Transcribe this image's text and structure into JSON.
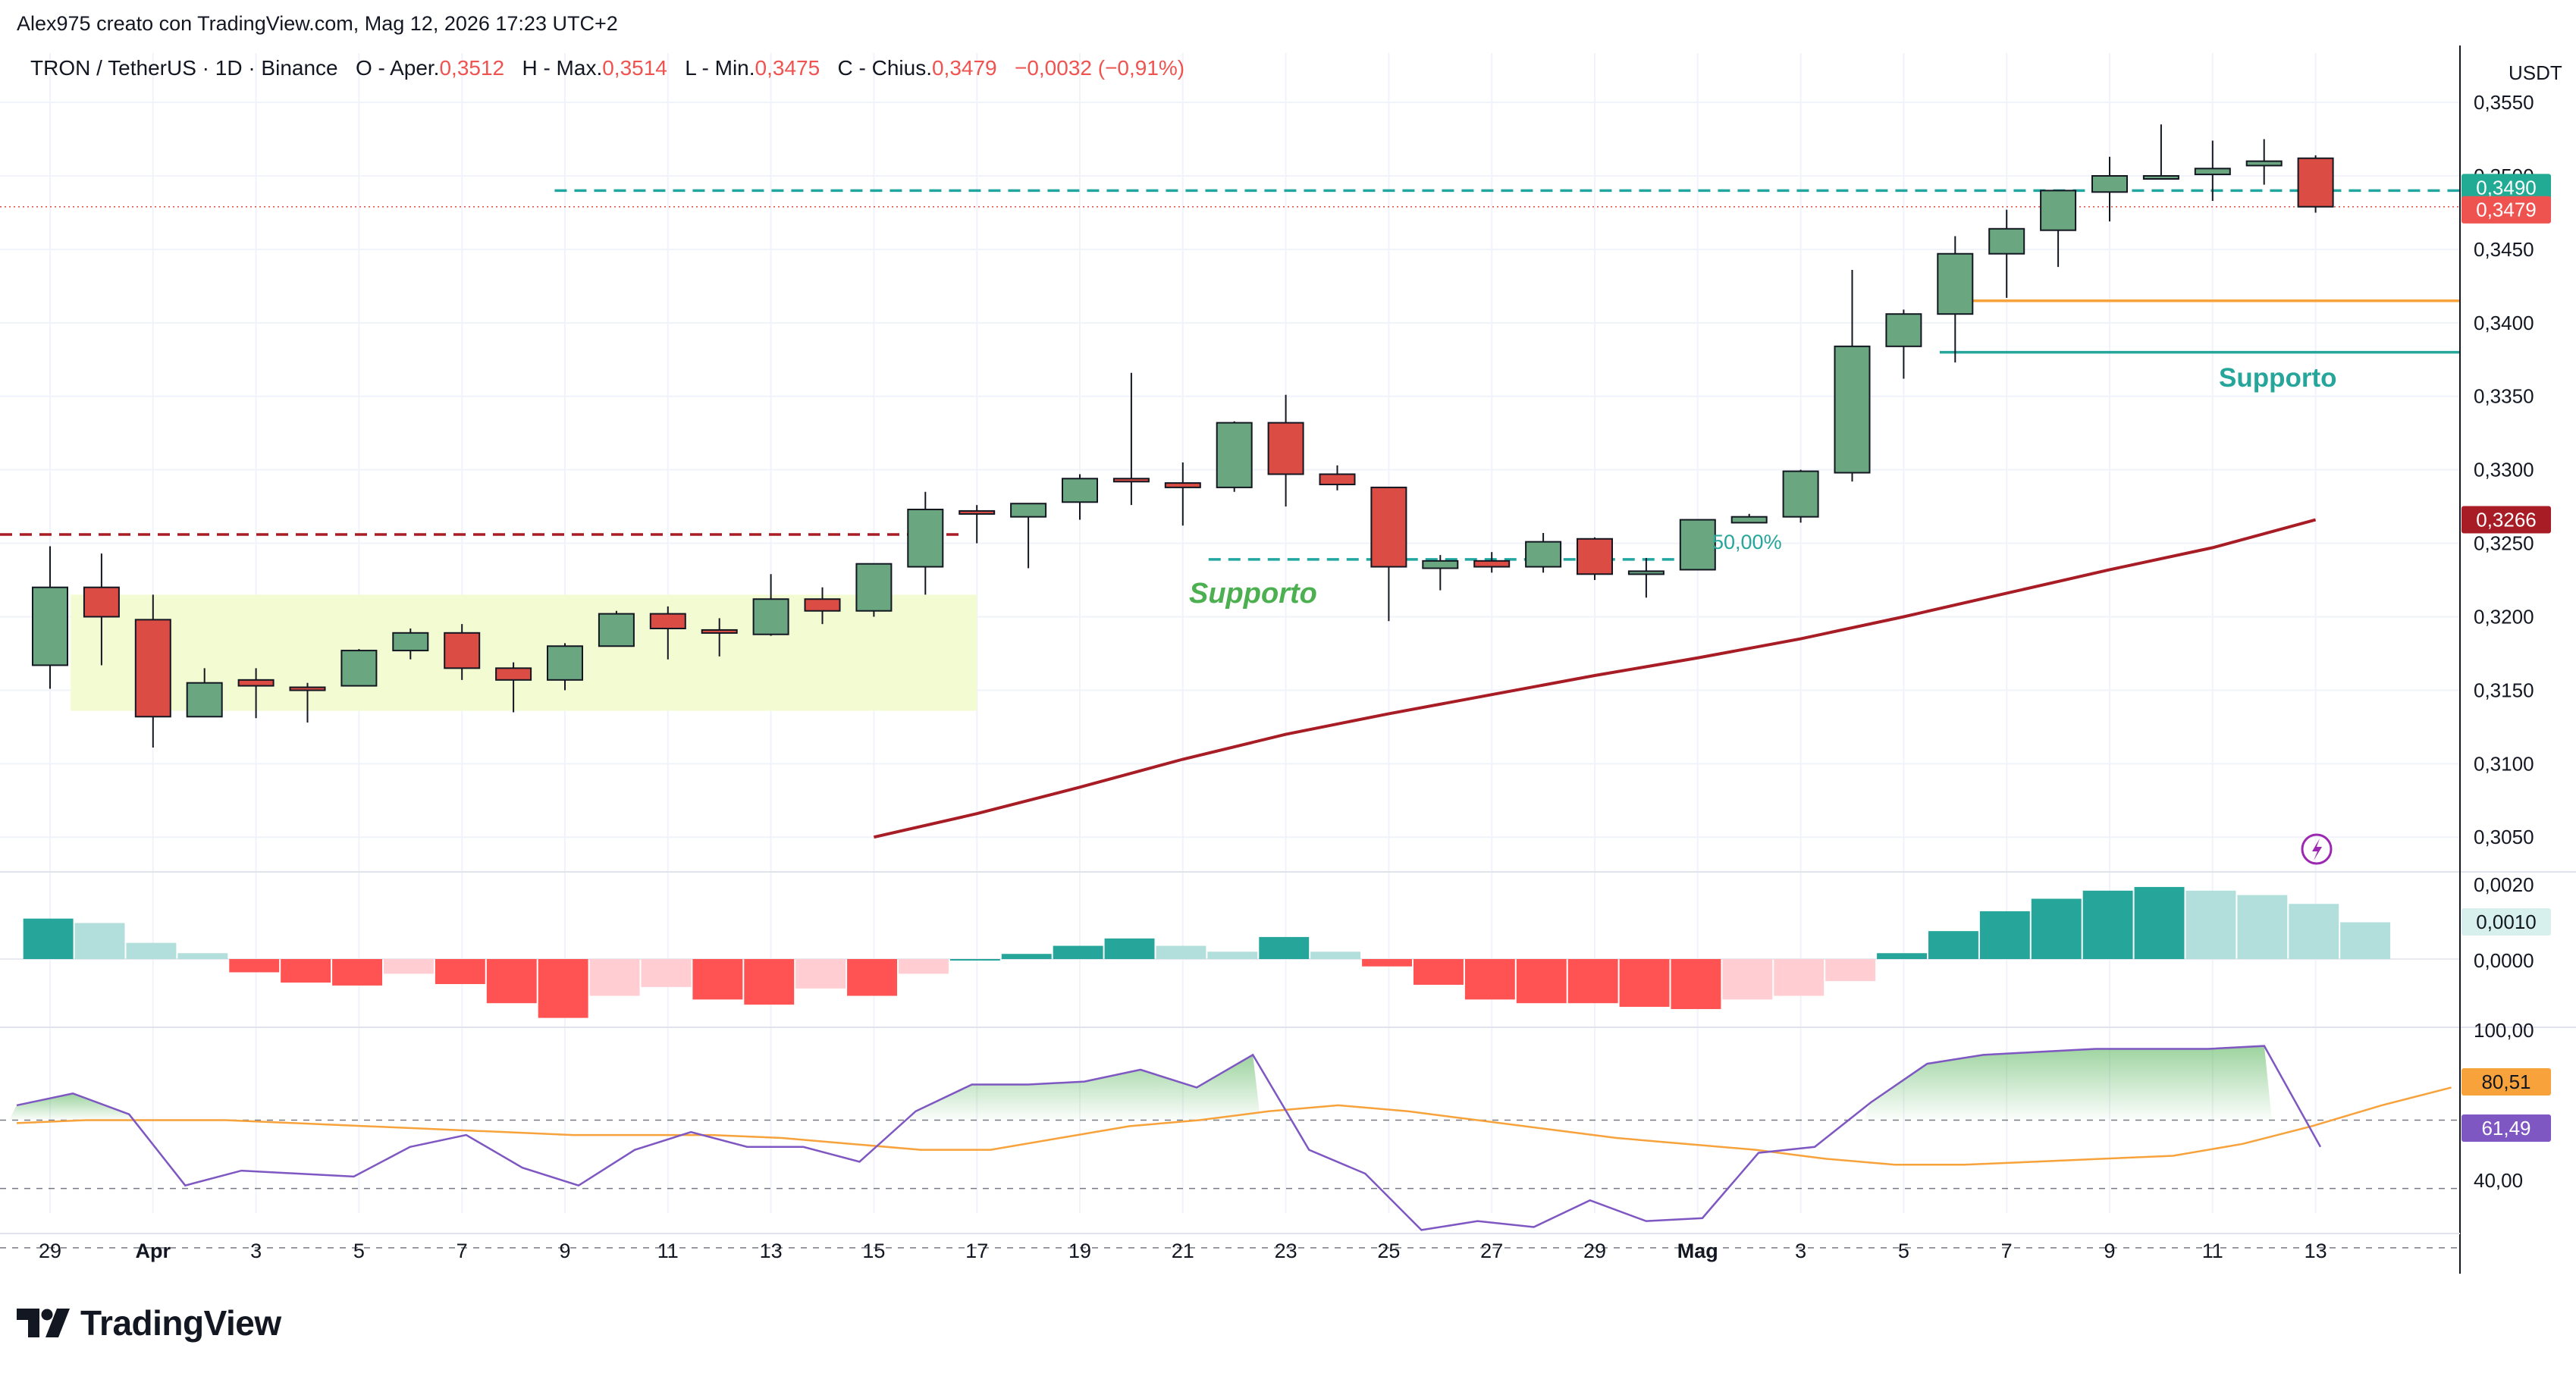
{
  "header": {
    "credit": "Alex975 creato con TradingView.com, Mag 12, 2026 17:23 UTC+2"
  },
  "legend": {
    "symbol": "TRON / TetherUS · 1D · Binance",
    "open_label": "O - Aper.",
    "open": "0,3512",
    "high_label": "H - Max.",
    "high": "0,3514",
    "low_label": "L - Min.",
    "low": "0,3475",
    "close_label": "C - Chius.",
    "close": "0,3479",
    "change": "−0,0032 (−0,91%)"
  },
  "axis": {
    "currency": "USDT",
    "price_ticks": [
      "0,3550",
      "0,3500",
      "0,3450",
      "0,3400",
      "0,3350",
      "0,3300",
      "0,3250",
      "0,3200",
      "0,3150",
      "0,3100",
      "0,3050"
    ],
    "macd_ticks": [
      "0,0020",
      "0,0010",
      "0,0000"
    ],
    "rsi_ticks": [
      "100,00",
      "40,00"
    ],
    "time_ticks": [
      "29",
      "Apr",
      "3",
      "5",
      "7",
      "9",
      "11",
      "13",
      "15",
      "17",
      "19",
      "21",
      "23",
      "25",
      "27",
      "29",
      "Mag",
      "3",
      "5",
      "7",
      "9",
      "11",
      "13"
    ]
  },
  "labels": {
    "last_price": "0,3479",
    "level_price": "0,3490",
    "ma_price": "0,3266",
    "macd_value": "0,0010",
    "rsi_ma_value": "80,51",
    "rsi_value": "61,49",
    "support_right": "Supporto",
    "support_left": "Supporto",
    "fib": "50,00%"
  },
  "colors": {
    "up": "#6aa680",
    "down": "#db4d44",
    "ma": "#a81d25",
    "level": "#22a6a0",
    "support": "#26a69a",
    "orange": "#f7a23b",
    "zone": "#f3fbd2",
    "hist_up_strong": "#26a69a",
    "hist_up_weak": "#b2dfdb",
    "hist_down_strong": "#ff5252",
    "hist_down_weak": "#ffcdd2",
    "rsi": "#7e57c2",
    "rsi_ma": "#f7a23b"
  },
  "brand": {
    "name": "TradingView"
  },
  "chart_data": {
    "type": "candlestick",
    "x_start": "2026-03-29",
    "candles": [
      {
        "o": 0.3167,
        "h": 0.3248,
        "l": 0.3151,
        "c": 0.322
      },
      {
        "o": 0.322,
        "h": 0.3243,
        "l": 0.3167,
        "c": 0.32
      },
      {
        "o": 0.3198,
        "h": 0.3215,
        "l": 0.3111,
        "c": 0.3132
      },
      {
        "o": 0.3132,
        "h": 0.3165,
        "l": 0.3132,
        "c": 0.3155
      },
      {
        "o": 0.3157,
        "h": 0.3165,
        "l": 0.3131,
        "c": 0.3153
      },
      {
        "o": 0.3152,
        "h": 0.3155,
        "l": 0.3128,
        "c": 0.3151
      },
      {
        "o": 0.3153,
        "h": 0.3178,
        "l": 0.3153,
        "c": 0.3177
      },
      {
        "o": 0.3177,
        "h": 0.3192,
        "l": 0.3171,
        "c": 0.3189
      },
      {
        "o": 0.3189,
        "h": 0.3195,
        "l": 0.3157,
        "c": 0.3165
      },
      {
        "o": 0.3165,
        "h": 0.3169,
        "l": 0.3135,
        "c": 0.3157
      },
      {
        "o": 0.3157,
        "h": 0.3182,
        "l": 0.315,
        "c": 0.318
      },
      {
        "o": 0.318,
        "h": 0.3204,
        "l": 0.318,
        "c": 0.3202
      },
      {
        "o": 0.3202,
        "h": 0.3207,
        "l": 0.3171,
        "c": 0.3192
      },
      {
        "o": 0.3191,
        "h": 0.3199,
        "l": 0.3173,
        "c": 0.3189
      },
      {
        "o": 0.3188,
        "h": 0.3229,
        "l": 0.3187,
        "c": 0.3212
      },
      {
        "o": 0.3212,
        "h": 0.322,
        "l": 0.3195,
        "c": 0.3204
      },
      {
        "o": 0.3204,
        "h": 0.3236,
        "l": 0.32,
        "c": 0.3236
      },
      {
        "o": 0.3234,
        "h": 0.3285,
        "l": 0.3215,
        "c": 0.3273
      },
      {
        "o": 0.3272,
        "h": 0.3276,
        "l": 0.325,
        "c": 0.3271
      },
      {
        "o": 0.3268,
        "h": 0.3276,
        "l": 0.3233,
        "c": 0.3277
      },
      {
        "o": 0.3278,
        "h": 0.3297,
        "l": 0.3266,
        "c": 0.3294
      },
      {
        "o": 0.3294,
        "h": 0.3366,
        "l": 0.3276,
        "c": 0.3292
      },
      {
        "o": 0.3291,
        "h": 0.3305,
        "l": 0.3262,
        "c": 0.3288
      },
      {
        "o": 0.3288,
        "h": 0.3333,
        "l": 0.3285,
        "c": 0.3332
      },
      {
        "o": 0.3332,
        "h": 0.3351,
        "l": 0.3275,
        "c": 0.3297
      },
      {
        "o": 0.3297,
        "h": 0.3303,
        "l": 0.3286,
        "c": 0.329
      },
      {
        "o": 0.3288,
        "h": 0.3288,
        "l": 0.3197,
        "c": 0.3234
      },
      {
        "o": 0.3233,
        "h": 0.3242,
        "l": 0.3218,
        "c": 0.3238
      },
      {
        "o": 0.3238,
        "h": 0.3244,
        "l": 0.323,
        "c": 0.3234
      },
      {
        "o": 0.3234,
        "h": 0.3257,
        "l": 0.323,
        "c": 0.3251
      },
      {
        "o": 0.3253,
        "h": 0.3254,
        "l": 0.3225,
        "c": 0.3229
      },
      {
        "o": 0.3229,
        "h": 0.324,
        "l": 0.3213,
        "c": 0.3231
      },
      {
        "o": 0.3232,
        "h": 0.3266,
        "l": 0.3232,
        "c": 0.3266
      },
      {
        "o": 0.3264,
        "h": 0.327,
        "l": 0.3264,
        "c": 0.3268
      },
      {
        "o": 0.3268,
        "h": 0.33,
        "l": 0.3264,
        "c": 0.3299
      },
      {
        "o": 0.3298,
        "h": 0.3436,
        "l": 0.3292,
        "c": 0.3384
      },
      {
        "o": 0.3384,
        "h": 0.3409,
        "l": 0.3362,
        "c": 0.3406
      },
      {
        "o": 0.3406,
        "h": 0.3459,
        "l": 0.3373,
        "c": 0.3447
      },
      {
        "o": 0.3447,
        "h": 0.3477,
        "l": 0.3417,
        "c": 0.3464
      },
      {
        "o": 0.3463,
        "h": 0.3487,
        "l": 0.3438,
        "c": 0.349
      },
      {
        "o": 0.3489,
        "h": 0.3513,
        "l": 0.3469,
        "c": 0.35
      },
      {
        "o": 0.35,
        "h": 0.3535,
        "l": 0.35,
        "c": 0.35
      },
      {
        "o": 0.3501,
        "h": 0.3524,
        "l": 0.3483,
        "c": 0.3505
      },
      {
        "o": 0.3507,
        "h": 0.3525,
        "l": 0.3494,
        "c": 0.351
      },
      {
        "o": 0.3512,
        "h": 0.3514,
        "l": 0.3475,
        "c": 0.3479
      }
    ],
    "ma": [
      {
        "i": 16,
        "v": 0.305
      },
      {
        "i": 18,
        "v": 0.3066
      },
      {
        "i": 20,
        "v": 0.3084
      },
      {
        "i": 22,
        "v": 0.3103
      },
      {
        "i": 24,
        "v": 0.312
      },
      {
        "i": 26,
        "v": 0.3134
      },
      {
        "i": 28,
        "v": 0.3147
      },
      {
        "i": 30,
        "v": 0.316
      },
      {
        "i": 32,
        "v": 0.3172
      },
      {
        "i": 34,
        "v": 0.3185
      },
      {
        "i": 36,
        "v": 0.32
      },
      {
        "i": 38,
        "v": 0.3216
      },
      {
        "i": 40,
        "v": 0.3232
      },
      {
        "i": 42,
        "v": 0.3247
      },
      {
        "i": 44,
        "v": 0.3266
      }
    ],
    "macd_hist": [
      0.00055,
      0.00049,
      0.00022,
      8e-05,
      -0.00018,
      -0.00032,
      -0.00036,
      -0.0002,
      -0.00034,
      -0.0006,
      -0.0008,
      -0.0005,
      -0.00038,
      -0.00055,
      -0.00062,
      -0.0004,
      -0.0005,
      -0.0002,
      0.0,
      7e-05,
      0.00018,
      0.00028,
      0.00018,
      0.0001,
      0.0003,
      0.0001,
      -0.0001,
      -0.00035,
      -0.00055,
      -0.0006,
      -0.0006,
      -0.00065,
      -0.00068,
      -0.00055,
      -0.0005,
      -0.0003,
      8e-05,
      0.00038,
      0.00065,
      0.00082,
      0.00093,
      0.00098,
      0.00093,
      0.00087,
      0.00075,
      0.0005
    ],
    "rsi": [
      75,
      79,
      72,
      48,
      53,
      52,
      51,
      61,
      65,
      54,
      48,
      60,
      66,
      61,
      61,
      56,
      73,
      82,
      82,
      83,
      87,
      81,
      92,
      60,
      52,
      33,
      36,
      34,
      43,
      36,
      37,
      59,
      61,
      76,
      89,
      92,
      93,
      94,
      94,
      94,
      95,
      61
    ],
    "rsi_ma": [
      69,
      70,
      70,
      70,
      69,
      68,
      67,
      66,
      65,
      65,
      65,
      64,
      62,
      60,
      60,
      64,
      68,
      70,
      73,
      75,
      73,
      70,
      67,
      64,
      62,
      60,
      57,
      55,
      55,
      56,
      57,
      58,
      62,
      68,
      75,
      81
    ],
    "levels": {
      "red_dashed": 0.3256,
      "teal_dashed": 0.349,
      "support_dashed": 0.3239,
      "orange": 0.3415,
      "support": 0.338
    },
    "zone": {
      "from_index": 0.4,
      "to_index": 18,
      "low": 0.3136,
      "high": 0.3215
    },
    "rsi_guides": [
      80,
      60,
      40
    ],
    "price_range": [
      0.303,
      0.3565
    ]
  }
}
